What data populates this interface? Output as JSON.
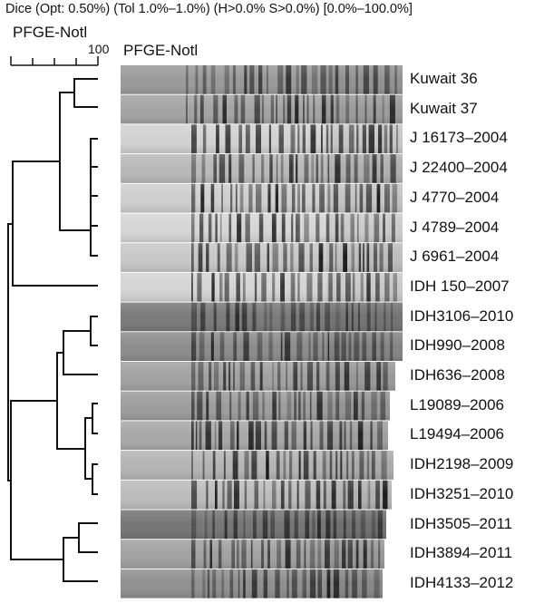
{
  "header": "Dice (Opt: 0.50%) (Tol 1.0%–1.0%) (H>0.0% S>0.0%) [0.0%–100.0%]",
  "scale": {
    "title": "PFGE-Notl",
    "max_label": "100"
  },
  "gel_title": "PFGE-Notl",
  "lanes": [
    {
      "label": "Kuwait 36"
    },
    {
      "label": "Kuwait 37"
    },
    {
      "label": "J 16173–2004"
    },
    {
      "label": "J 22400–2004"
    },
    {
      "label": "J 4770–2004"
    },
    {
      "label": "J 4789–2004"
    },
    {
      "label": "J 6961–2004"
    },
    {
      "label": "IDH 150–2007"
    },
    {
      "label": "IDH3106–2010"
    },
    {
      "label": "IDH990–2008"
    },
    {
      "label": "IDH636–2008"
    },
    {
      "label": "L19089–2006"
    },
    {
      "label": "L19494–2006"
    },
    {
      "label": "IDH2198–2009"
    },
    {
      "label": "IDH3251–2010"
    },
    {
      "label": "IDH3505–2011"
    },
    {
      "label": "IDH3894–2011"
    },
    {
      "label": "IDH4133–2012"
    }
  ]
}
